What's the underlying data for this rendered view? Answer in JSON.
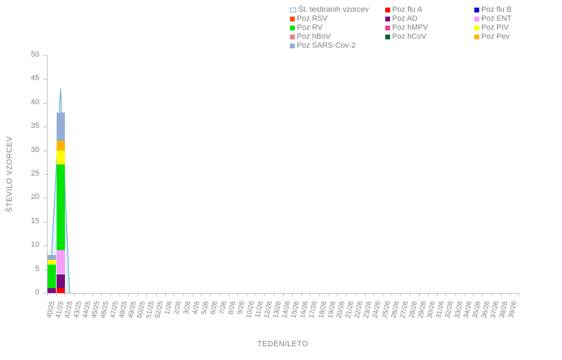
{
  "axes": {
    "y_title": "ŠTEVILO VZORCEV",
    "x_title": "TEDEN/LETO",
    "y_ticks": [
      0,
      5,
      10,
      15,
      20,
      25,
      30,
      35,
      40,
      45,
      50
    ]
  },
  "legend": {
    "items": [
      {
        "label": "Št. testiranih vzorcev",
        "color": "#FFFFFF",
        "border": "#74AFDA",
        "type": "line"
      },
      {
        "label": "Poz flu A",
        "color": "#FF0000"
      },
      {
        "label": "Poz flu B",
        "color": "#0000DD"
      },
      {
        "label": "Poz RSV",
        "color": "#FF4A00"
      },
      {
        "label": "Poz AD",
        "color": "#7A0B7D"
      },
      {
        "label": "Poz ENT",
        "color": "#FA9BFA"
      },
      {
        "label": "Poz RV",
        "color": "#00E400"
      },
      {
        "label": "Poz hMPV",
        "color": "#F4399B"
      },
      {
        "label": "Poz PIV",
        "color": "#FFFF00"
      },
      {
        "label": "Poz hBoV",
        "color": "#F1808A"
      },
      {
        "label": "Poz hCoV",
        "color": "#0B6B23"
      },
      {
        "label": "Poz Pev",
        "color": "#FFB400"
      },
      {
        "label": "Poz SARS-Cov-2",
        "color": "#93ADD4"
      }
    ]
  },
  "chart_data": {
    "type": "bar",
    "subtype": "stacked-bars-with-line-overlay",
    "title": "",
    "xlabel": "TEDEN/LETO",
    "ylabel": "ŠTEVILO VZORCEV",
    "ylim": [
      0,
      50
    ],
    "y_tick_step": 5,
    "grid": false,
    "legend_position": "top",
    "categories": [
      "40/25",
      "41/25",
      "42/25",
      "43/25",
      "44/25",
      "45/25",
      "46/25",
      "47/25",
      "48/25",
      "49/25",
      "50/25",
      "51/25",
      "52/25",
      "1/26",
      "2/26",
      "3/26",
      "4/26",
      "5/26",
      "6/26",
      "7/26",
      "8/26",
      "9/26",
      "10/26",
      "11/26",
      "12/26",
      "13/26",
      "14/26",
      "15/26",
      "16/26",
      "17/26",
      "18/26",
      "19/26",
      "20/26",
      "21/26",
      "22/26",
      "23/26",
      "24/26",
      "25/26",
      "26/26",
      "27/26",
      "28/26",
      "29/26",
      "30/26",
      "31/26",
      "32/26",
      "33/26",
      "34/26",
      "35/26",
      "36/26",
      "37/26",
      "38/26",
      "39/26"
    ],
    "bars": [
      {
        "week": "40/25",
        "total": 8,
        "segments": [
          {
            "series": "Poz AD",
            "value": 1
          },
          {
            "series": "Poz RV",
            "value": 5
          },
          {
            "series": "Poz PIV",
            "value": 1
          },
          {
            "series": "Poz SARS-Cov-2",
            "value": 1
          }
        ]
      },
      {
        "week": "41/25",
        "total": 38,
        "segments": [
          {
            "series": "Poz flu A",
            "value": 1
          },
          {
            "series": "Poz AD",
            "value": 3
          },
          {
            "series": "Poz ENT",
            "value": 5
          },
          {
            "series": "Poz RV",
            "value": 18
          },
          {
            "series": "Poz PIV",
            "value": 3
          },
          {
            "series": "Poz Pev",
            "value": 2
          },
          {
            "series": "Poz SARS-Cov-2",
            "value": 6
          }
        ]
      }
    ],
    "line": {
      "name": "Št. testiranih vzorcev",
      "stroke": "#74AFDA",
      "fill": "#DDF4FC",
      "points": [
        {
          "week": "40/25",
          "value": 8
        },
        {
          "week": "41/25",
          "value": 43
        },
        {
          "week": "42/25",
          "value": 0
        }
      ]
    }
  }
}
